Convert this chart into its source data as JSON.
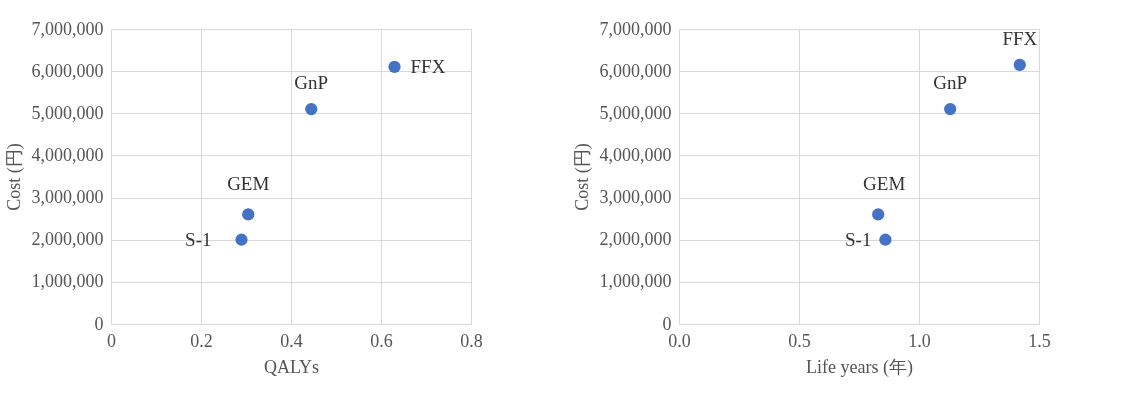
{
  "chart_data": [
    {
      "type": "scatter",
      "xlabel": "QALYs",
      "ylabel": "Cost (円)",
      "marker": "circle",
      "grid": true,
      "series": [
        {
          "color": "#4472c4",
          "x": [
            0.29,
            0.305,
            0.445,
            0.63
          ],
          "values": [
            2000000,
            2600000,
            5100000,
            6100000
          ]
        }
      ],
      "xlim": [
        0,
        0.8
      ],
      "xticks": [
        0,
        0.2,
        0.4,
        0.6,
        0.8
      ],
      "ylim": [
        0,
        7000000
      ],
      "yticks": [
        {
          "value": 0,
          "label": "0"
        },
        {
          "value": 1000000,
          "label": "1,000,000"
        },
        {
          "value": 2000000,
          "label": "2,000,000"
        },
        {
          "value": 3000000,
          "label": "3,000,000"
        },
        {
          "value": 4000000,
          "label": "4,000,000"
        },
        {
          "value": 5000000,
          "label": "5,000,000"
        },
        {
          "value": 6000000,
          "label": "6,000,000"
        },
        {
          "value": 7000000,
          "label": "7,000,000"
        }
      ],
      "annotations": [
        {
          "text": "S-1",
          "x": 0.29,
          "y": 2000000
        },
        {
          "text": "GEM",
          "x": 0.305,
          "y": 2600000
        },
        {
          "text": "GnP",
          "x": 0.445,
          "y": 5100000
        },
        {
          "text": "FFX",
          "x": 0.63,
          "y": 6100000
        }
      ]
    },
    {
      "type": "scatter",
      "xlabel": "Life years (年)",
      "ylabel": "Cost (円)",
      "marker": "circle",
      "grid": true,
      "series": [
        {
          "color": "#4472c4",
          "x": [
            0.86,
            0.83,
            1.13,
            1.42
          ],
          "values": [
            2000000,
            2600000,
            5100000,
            6150000
          ]
        }
      ],
      "xlim": [
        0,
        1.5
      ],
      "xticks": [
        {
          "value": 0,
          "label": "0.0"
        },
        {
          "value": 0.5,
          "label": "0.5"
        },
        {
          "value": 1,
          "label": "1.0"
        },
        {
          "value": 1.5,
          "label": "1.5"
        }
      ],
      "ylim": [
        0,
        7000000
      ],
      "yticks": [
        {
          "value": 0,
          "label": "0"
        },
        {
          "value": 1000000,
          "label": "1,000,000"
        },
        {
          "value": 2000000,
          "label": "2,000,000"
        },
        {
          "value": 3000000,
          "label": "3,000,000"
        },
        {
          "value": 4000000,
          "label": "4,000,000"
        },
        {
          "value": 5000000,
          "label": "5,000,000"
        },
        {
          "value": 6000000,
          "label": "6,000,000"
        },
        {
          "value": 7000000,
          "label": "7,000,000"
        }
      ],
      "annotations": [
        {
          "text": "S-1",
          "x": 0.86,
          "y": 2000000
        },
        {
          "text": "GEM",
          "x": 0.83,
          "y": 2600000
        },
        {
          "text": "GnP",
          "x": 1.13,
          "y": 5100000
        },
        {
          "text": "FFX",
          "x": 1.42,
          "y": 6150000
        }
      ]
    }
  ]
}
